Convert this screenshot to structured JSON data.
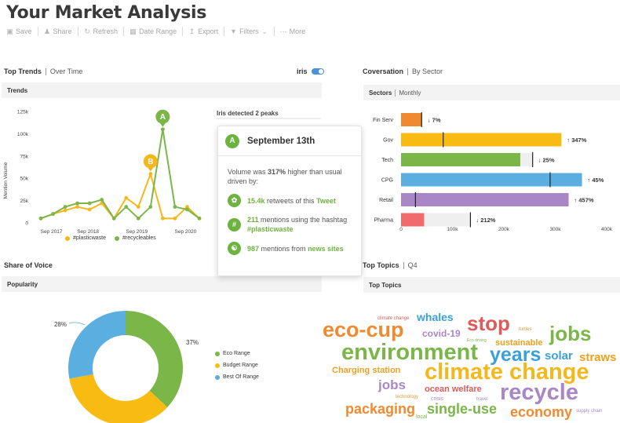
{
  "page": {
    "title": "Your Market Analysis"
  },
  "toolbar": {
    "save": "Save",
    "share": "Share",
    "refresh": "Refresh",
    "date_range": "Date Range",
    "export": "Export",
    "filters": "Filters",
    "more": "More"
  },
  "top_trends": {
    "title": "Top Trends",
    "sub": "Over Time",
    "toggle_label": "iris",
    "panel_title": "Trends",
    "peaks_text": "Iris detected 2 peaks",
    "y_axis_label": "Mention Volume",
    "y_ticks": [
      "125k",
      "100k",
      "75k",
      "50k",
      "25k",
      "0"
    ],
    "x_ticks": [
      "Sep 2017",
      "Sep 2018",
      "Sep 2019",
      "Sep 2020"
    ],
    "legend": [
      "#plasticwaste",
      "#recycleables"
    ],
    "peak_a": "A",
    "peak_b": "B"
  },
  "popup": {
    "badge": "A",
    "date": "September 13th",
    "volume_pre": "Volume was ",
    "volume_pct": "317%",
    "volume_post": " higher than usual driven by:",
    "retweets_num": "15.4k",
    "retweets_text": " retweets of this ",
    "retweets_link": "Tweet",
    "mentions_num": "211",
    "mentions_text": " mentions using the hashtag ",
    "mentions_tag": "#plasticwaste",
    "news_num": "987",
    "news_text": " mentions from ",
    "news_link": "news sites"
  },
  "conversation": {
    "title": "Coversation",
    "sub": "By Sector",
    "panel_title": "Sectors",
    "panel_sub": "Monthly",
    "x_ticks": [
      "0",
      "100k",
      "200k",
      "300k",
      "400k"
    ]
  },
  "share_of_voice": {
    "title": "Share of Voice",
    "panel_title": "Popularity",
    "label_28": "28%",
    "label_37": "37%"
  },
  "top_topics": {
    "title": "Top Topics",
    "sub": "Q4",
    "panel_title": "Top Topics"
  },
  "chart_data": [
    {
      "type": "line",
      "title": "Trends",
      "ylabel": "Mention Volume",
      "ylim": [
        0,
        125000
      ],
      "x": [
        "",
        "",
        "",
        "",
        "Sep 2018",
        "",
        "",
        "",
        "Sep 2019",
        "",
        "",
        "",
        "Sep 2020",
        ""
      ],
      "series": [
        {
          "name": "#plasticwaste",
          "color": "#f5b81c",
          "values": [
            5000,
            10000,
            14000,
            18000,
            15000,
            22000,
            5000,
            28000,
            18000,
            55000,
            5000,
            5000,
            18000,
            5000
          ]
        },
        {
          "name": "#recycleables",
          "color": "#7ab648",
          "values": [
            5000,
            10000,
            18000,
            22000,
            22000,
            26000,
            5000,
            18000,
            5000,
            18000,
            105000,
            18000,
            15000,
            5000
          ]
        }
      ],
      "peaks": [
        {
          "label": "A",
          "value": 105000
        },
        {
          "label": "B",
          "value": 55000
        }
      ],
      "legend": "bottom",
      "grid": false
    },
    {
      "type": "bar",
      "title": "Sectors",
      "orientation": "horizontal",
      "categories": [
        "Fin Serv",
        "Gov",
        "Tech",
        "CPG",
        "Retail",
        "Pharma"
      ],
      "values": [
        41000,
        312000,
        232000,
        352000,
        326000,
        45000
      ],
      "markers": [
        40000,
        82000,
        256000,
        290000,
        28000,
        135000
      ],
      "colors": [
        "#f08a30",
        "#f7bb12",
        "#7ab648",
        "#5aaee0",
        "#a987c6",
        "#f06b6b"
      ],
      "changes": [
        "7%",
        "347%",
        "25%",
        "45%",
        "457%",
        "212%"
      ],
      "directions": [
        "down",
        "up",
        "down",
        "up",
        "up",
        "down"
      ],
      "xlim": [
        0,
        400000
      ],
      "grid": false
    },
    {
      "type": "pie",
      "title": "Popularity",
      "categories": [
        "Eco Range",
        "Budget Range",
        "Best Of Range"
      ],
      "values": [
        37,
        35,
        28
      ],
      "colors": [
        "#7ab648",
        "#f7bb12",
        "#5aaee0"
      ],
      "legend": "right"
    }
  ],
  "word_cloud": [
    {
      "text": "climate change",
      "color": "#e05a5a",
      "size": 6
    },
    {
      "text": "whales",
      "color": "#3aa0d8",
      "size": 14
    },
    {
      "text": "stop",
      "color": "#e05a5a",
      "size": 26
    },
    {
      "text": "turtles",
      "color": "#e09a3a",
      "size": 6
    },
    {
      "text": "eco-cup",
      "color": "#f08a30",
      "size": 27
    },
    {
      "text": "covid-19",
      "color": "#a987c6",
      "size": 12
    },
    {
      "text": "Eco driving",
      "color": "#7ab648",
      "size": 5
    },
    {
      "text": "jobs",
      "color": "#7ab648",
      "size": 26
    },
    {
      "text": "sustainable",
      "color": "#f0a020",
      "size": 11
    },
    {
      "text": "environment",
      "color": "#7ab648",
      "size": 29
    },
    {
      "text": "years",
      "color": "#3aa0d8",
      "size": 25
    },
    {
      "text": "solar",
      "color": "#3aa0d8",
      "size": 15
    },
    {
      "text": "straws",
      "color": "#f0a020",
      "size": 15
    },
    {
      "text": "Charging station",
      "color": "#f0a020",
      "size": 11
    },
    {
      "text": "climate change",
      "color": "#f5b81c",
      "size": 29
    },
    {
      "text": "jobs",
      "color": "#a987c6",
      "size": 17
    },
    {
      "text": "ocean welfare",
      "color": "#e05a5a",
      "size": 11
    },
    {
      "text": "recycle",
      "color": "#a987c6",
      "size": 29
    },
    {
      "text": "technology",
      "color": "#e09a3a",
      "size": 6
    },
    {
      "text": "crisis",
      "color": "#a987c6",
      "size": 7
    },
    {
      "text": "travel",
      "color": "#a987c6",
      "size": 6
    },
    {
      "text": "packaging",
      "color": "#f08a30",
      "size": 18
    },
    {
      "text": "single-use",
      "color": "#7ab648",
      "size": 18
    },
    {
      "text": "economy",
      "color": "#f08a30",
      "size": 18
    },
    {
      "text": "supply chain",
      "color": "#a987c6",
      "size": 6
    },
    {
      "text": "local",
      "color": "#7ab648",
      "size": 7
    }
  ]
}
